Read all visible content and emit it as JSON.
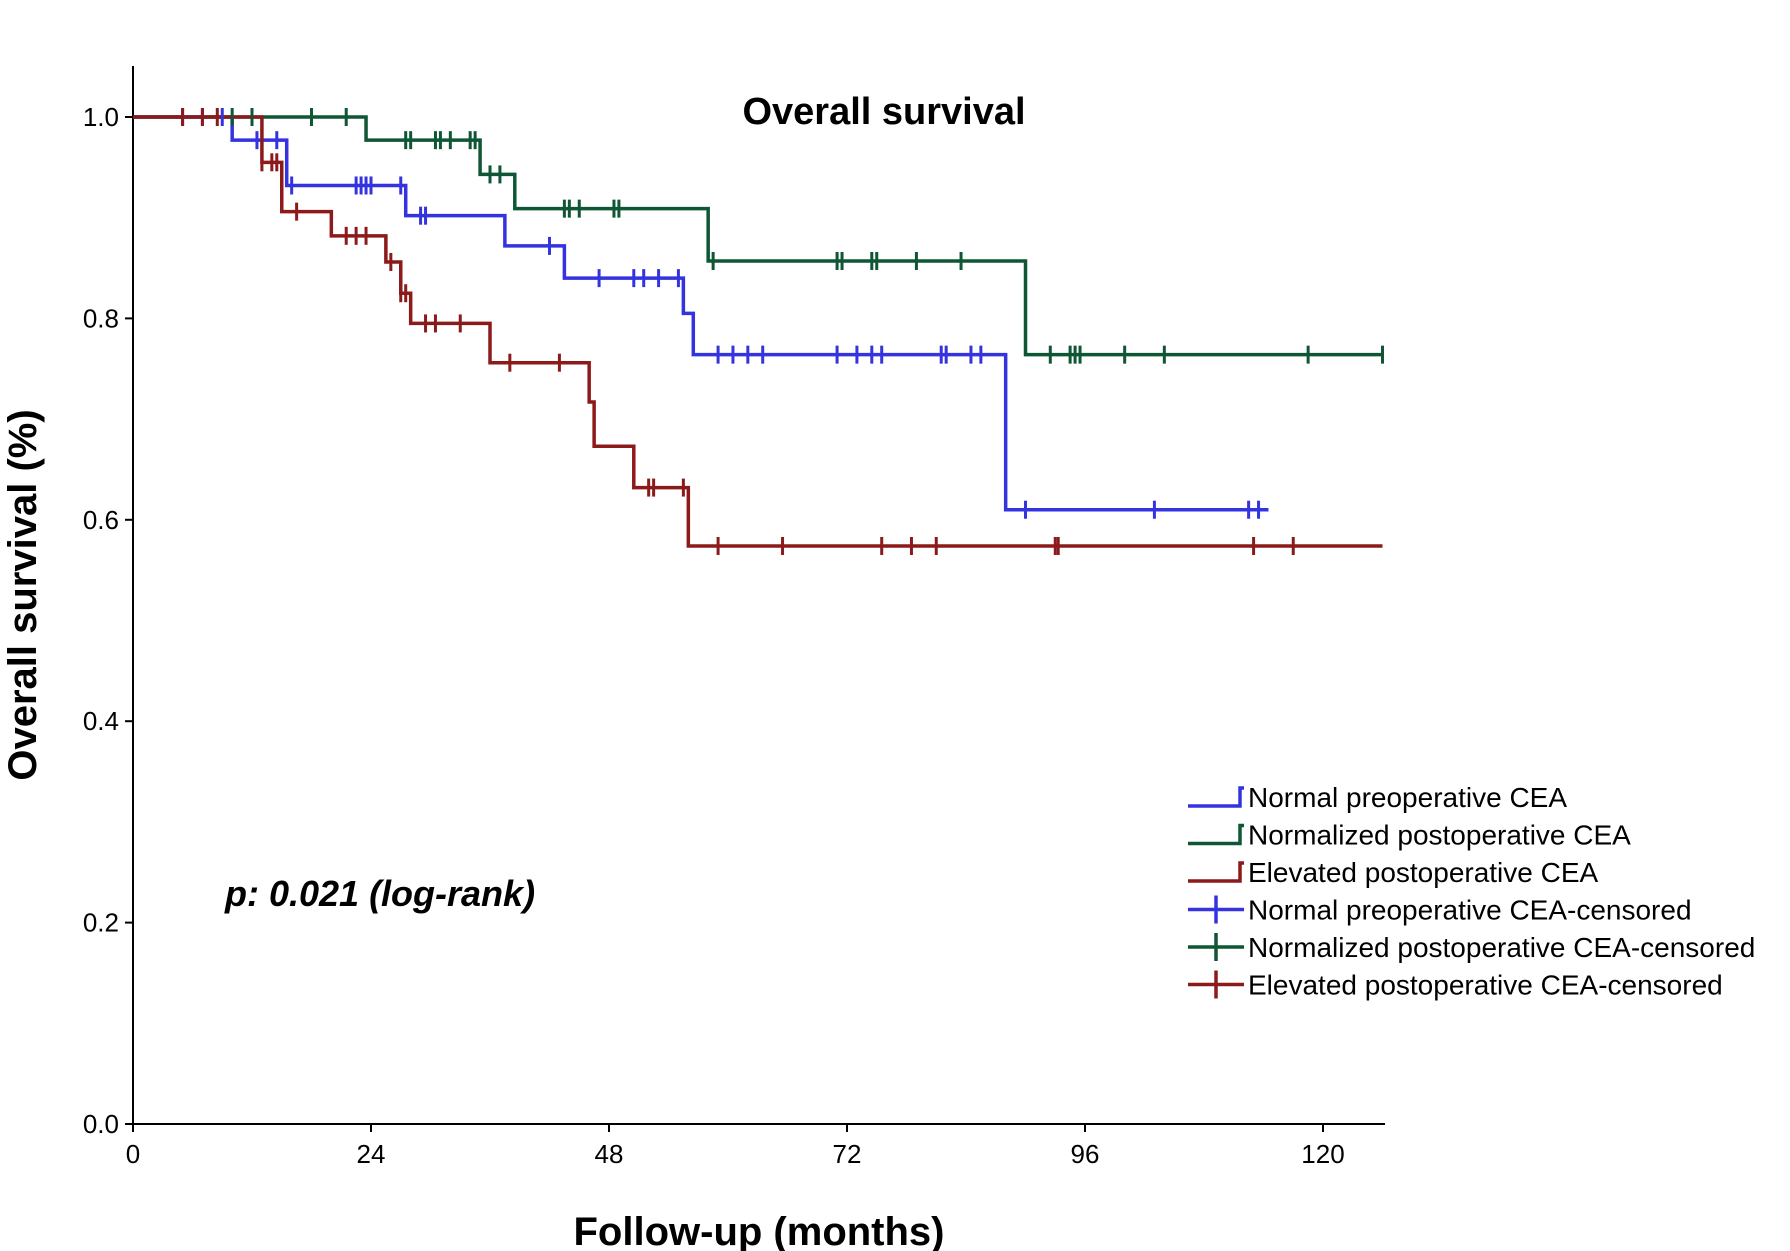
{
  "chart_data": {
    "type": "line",
    "subtype": "kaplan-meier",
    "title": "Overall survival",
    "xlabel": "Follow-up (months)",
    "ylabel": "Overall survival (%)",
    "xlim": [
      0,
      126
    ],
    "ylim": [
      0,
      1.05
    ],
    "xticks": [
      0,
      24,
      48,
      72,
      96,
      120
    ],
    "yticks": [
      0.0,
      0.2,
      0.4,
      0.6,
      0.8,
      1.0
    ],
    "ytick_labels": [
      "0.0",
      "0.2",
      "0.4",
      "0.6",
      "0.8",
      "1.0"
    ],
    "annotation": "p: 0.021 (log-rank)",
    "legend_position": "lower-right",
    "series": [
      {
        "name": "Normal preoperative CEA",
        "censored_name": "Normal preoperative CEA-censored",
        "color": "#3333e0",
        "end_x": 114.5,
        "steps": [
          [
            0,
            1.0
          ],
          [
            10,
            0.977
          ],
          [
            15.5,
            0.932
          ],
          [
            27.5,
            0.902
          ],
          [
            37.5,
            0.872
          ],
          [
            43.5,
            0.84
          ],
          [
            55.5,
            0.805
          ],
          [
            56.5,
            0.764
          ],
          [
            88,
            0.61
          ]
        ],
        "censored": [
          5,
          7,
          9,
          12.5,
          14.5,
          16,
          22.5,
          23,
          23.5,
          24,
          27,
          29,
          29.5,
          42,
          47,
          50.5,
          51.5,
          53,
          55,
          59,
          60.5,
          62,
          63.5,
          71,
          73,
          74.5,
          75.5,
          81.5,
          82,
          84.5,
          85.5,
          90,
          103,
          112.5,
          113.5
        ]
      },
      {
        "name": "Normalized postoperative CEA",
        "censored_name": "Normalized postoperative CEA-censored",
        "color": "#0f5634",
        "end_x": 126,
        "steps": [
          [
            0,
            1.0
          ],
          [
            23.5,
            0.977
          ],
          [
            35,
            0.943
          ],
          [
            38.5,
            0.909
          ],
          [
            58,
            0.857
          ],
          [
            90,
            0.764
          ]
        ],
        "censored": [
          10,
          12,
          18,
          21.5,
          27.5,
          28,
          30.5,
          31,
          32,
          34,
          34.5,
          36,
          37,
          43.5,
          44,
          45,
          48.5,
          49,
          58.5,
          71,
          71.5,
          74.5,
          75,
          79,
          83.5,
          92.5,
          94.5,
          95,
          95.5,
          100,
          104,
          118.5,
          126
        ]
      },
      {
        "name": "Elevated postoperative CEA",
        "censored_name": "Elevated postoperative CEA-censored",
        "color": "#8c1a1a",
        "end_x": 126,
        "steps": [
          [
            0,
            1.0
          ],
          [
            13,
            0.955
          ],
          [
            15,
            0.906
          ],
          [
            20,
            0.882
          ],
          [
            25.5,
            0.856
          ],
          [
            27,
            0.825
          ],
          [
            28,
            0.795
          ],
          [
            36,
            0.756
          ],
          [
            46,
            0.717
          ],
          [
            46.5,
            0.673
          ],
          [
            50.5,
            0.632
          ],
          [
            56,
            0.574
          ]
        ],
        "censored": [
          5,
          7,
          8.5,
          13,
          14,
          14.5,
          16.5,
          21.5,
          22.5,
          23.5,
          26,
          27,
          27.5,
          29.5,
          30.5,
          33,
          38,
          43,
          52,
          52.5,
          55.5,
          59,
          65.5,
          75.5,
          78.5,
          81,
          93,
          93.3,
          113,
          117
        ]
      }
    ]
  }
}
